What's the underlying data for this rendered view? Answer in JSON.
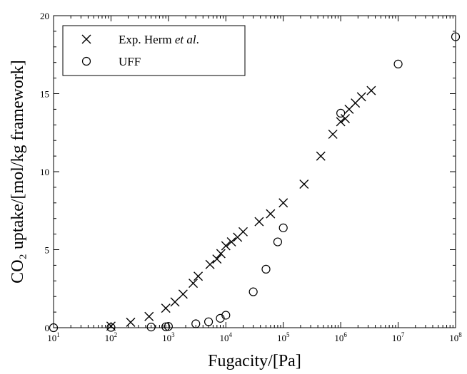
{
  "chart_data": {
    "type": "scatter",
    "xscale": "log",
    "xlim": [
      10,
      100000000
    ],
    "ylim": [
      0,
      20
    ],
    "xlabel": "Fugacity/[Pa]",
    "ylabel": "CO₂ uptake/[mol/kg framework]",
    "x_ticks": [
      {
        "base": "10",
        "exp": "1"
      },
      {
        "base": "10",
        "exp": "2"
      },
      {
        "base": "10",
        "exp": "3"
      },
      {
        "base": "10",
        "exp": "4"
      },
      {
        "base": "10",
        "exp": "5"
      },
      {
        "base": "10",
        "exp": "6"
      },
      {
        "base": "10",
        "exp": "7"
      },
      {
        "base": "10",
        "exp": "8"
      }
    ],
    "y_ticks": [
      "0",
      "5",
      "10",
      "15",
      "20"
    ],
    "legend_position": "top-left",
    "series": [
      {
        "name": "Exp. Herm et al.",
        "marker": "x",
        "points": [
          [
            100,
            0.1
          ],
          [
            220,
            0.35
          ],
          [
            460,
            0.72
          ],
          [
            900,
            1.25
          ],
          [
            1300,
            1.65
          ],
          [
            1800,
            2.15
          ],
          [
            2700,
            2.85
          ],
          [
            3300,
            3.3
          ],
          [
            5300,
            4.05
          ],
          [
            7000,
            4.4
          ],
          [
            8200,
            4.75
          ],
          [
            10000,
            5.25
          ],
          [
            12500,
            5.5
          ],
          [
            16000,
            5.8
          ],
          [
            20000,
            6.15
          ],
          [
            38000,
            6.8
          ],
          [
            60000,
            7.3
          ],
          [
            100000,
            8.0
          ],
          [
            230000,
            9.2
          ],
          [
            450000,
            11.0
          ],
          [
            730000,
            12.4
          ],
          [
            1000000,
            13.2
          ],
          [
            1200000,
            13.4
          ],
          [
            1400000,
            14.0
          ],
          [
            1800000,
            14.4
          ],
          [
            2300000,
            14.8
          ],
          [
            3400000,
            15.2
          ]
        ]
      },
      {
        "name": "UFF",
        "marker": "circle",
        "points": [
          [
            10,
            0
          ],
          [
            100,
            0.02
          ],
          [
            500,
            0.04
          ],
          [
            900,
            0.06
          ],
          [
            1000,
            0.08
          ],
          [
            3000,
            0.25
          ],
          [
            5000,
            0.38
          ],
          [
            8000,
            0.6
          ],
          [
            10000,
            0.8
          ],
          [
            30000,
            2.3
          ],
          [
            50000,
            3.75
          ],
          [
            80000,
            5.5
          ],
          [
            100000,
            6.4
          ],
          [
            1000000,
            13.75
          ],
          [
            10000000,
            16.9
          ],
          [
            100000000,
            18.65
          ]
        ]
      }
    ]
  }
}
